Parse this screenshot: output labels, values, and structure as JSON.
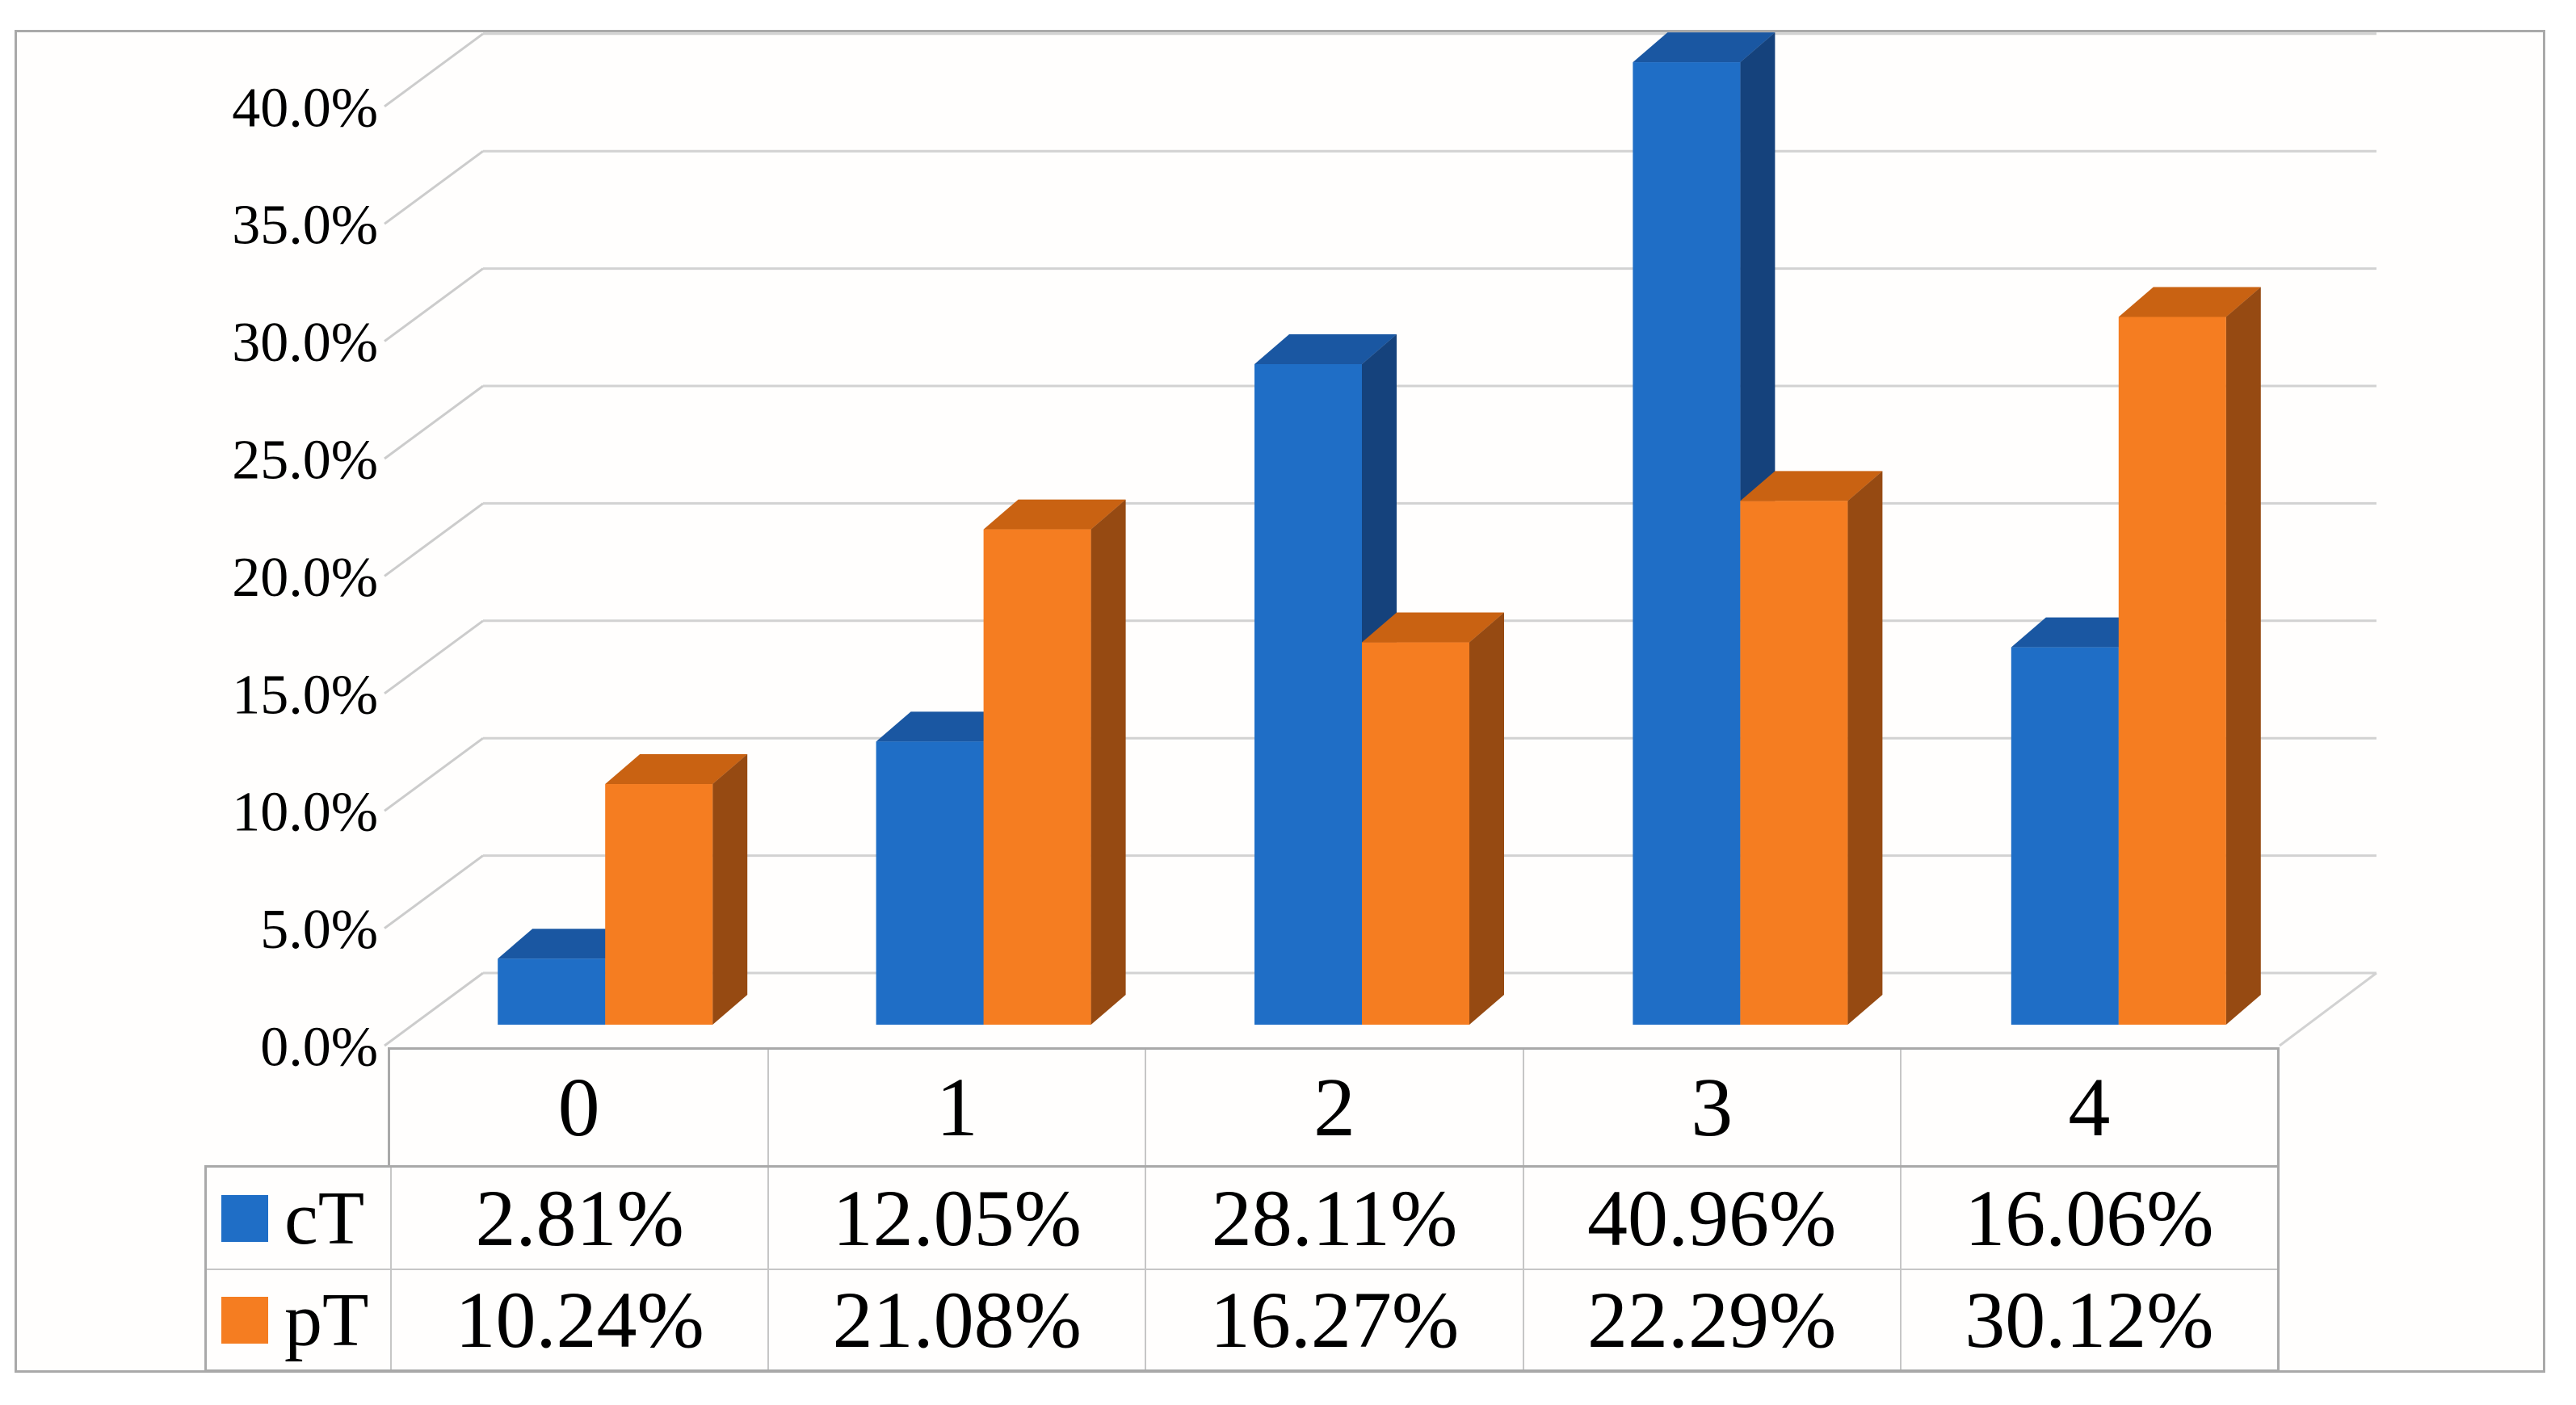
{
  "chart_data": {
    "type": "bar",
    "variant": "3d-clustered-column",
    "title": "",
    "xlabel": "",
    "ylabel": "",
    "categories": [
      "0",
      "1",
      "2",
      "3",
      "4"
    ],
    "series": [
      {
        "name": "cT",
        "values": [
          2.81,
          12.05,
          28.11,
          40.96,
          16.06
        ],
        "display": [
          "2.81%",
          "12.05%",
          "28.11%",
          "40.96%",
          "16.06%"
        ]
      },
      {
        "name": "pT",
        "values": [
          10.24,
          21.08,
          16.27,
          22.29,
          30.12
        ],
        "display": [
          "10.24%",
          "21.08%",
          "16.27%",
          "22.29%",
          "30.12%"
        ]
      }
    ],
    "y_ticks": [
      "0.0%",
      "5.0%",
      "10.0%",
      "15.0%",
      "20.0%",
      "25.0%",
      "30.0%",
      "35.0%",
      "40.0%"
    ],
    "y_tick_values": [
      0,
      5,
      10,
      15,
      20,
      25,
      30,
      35,
      40
    ],
    "ylim": [
      0,
      40
    ],
    "grid": true,
    "legend_position": "table-left-keys"
  },
  "colors": {
    "ct_front": "#1f6ec6",
    "ct_top": "#1a57a2",
    "ct_side": "#15427c",
    "pt_front": "#f57d21",
    "pt_top": "#c96212",
    "pt_side": "#964a12",
    "gridline": "#d2d2d2",
    "diagonal": "#cccccc",
    "frame_border": "#a9a9a9",
    "table_inner_line": "#c6c6c6",
    "background": "#ffffff",
    "text": "#000000"
  }
}
